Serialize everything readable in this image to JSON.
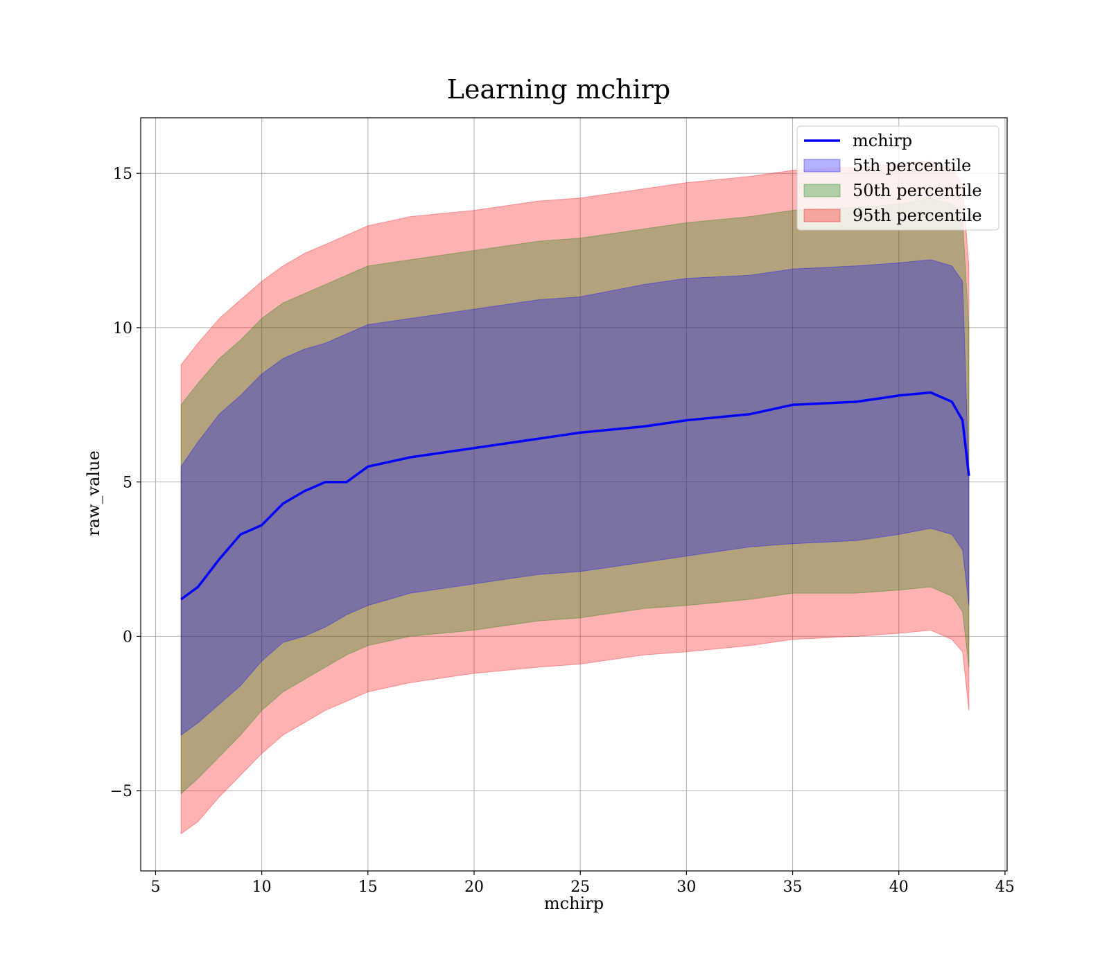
{
  "chart_data": {
    "type": "line",
    "title": "Learning mchirp",
    "xlabel": "mchirp",
    "ylabel": "raw_value",
    "xlim": [
      4.3,
      45.1
    ],
    "ylim": [
      -7.6,
      16.8
    ],
    "xticks": [
      5,
      10,
      15,
      20,
      25,
      30,
      35,
      40,
      45
    ],
    "yticks": [
      -5,
      0,
      5,
      10,
      15
    ],
    "xtick_labels": [
      "5",
      "10",
      "15",
      "20",
      "25",
      "30",
      "35",
      "40",
      "45"
    ],
    "ytick_labels": [
      "−5",
      "0",
      "5",
      "10",
      "15"
    ],
    "grid": true,
    "legend_position": "top-right",
    "x": [
      6.2,
      7,
      8,
      9,
      10,
      11,
      12,
      13,
      14,
      15,
      17,
      20,
      23,
      25,
      28,
      30,
      33,
      35,
      38,
      40,
      41.5,
      42.5,
      43,
      43.3
    ],
    "series": [
      {
        "name": "mchirp",
        "kind": "line",
        "color": "#0000ff",
        "values": [
          1.2,
          1.6,
          2.5,
          3.3,
          3.6,
          4.3,
          4.7,
          5.0,
          5.0,
          5.5,
          5.8,
          6.1,
          6.4,
          6.6,
          6.8,
          7.0,
          7.2,
          7.5,
          7.6,
          7.8,
          7.9,
          7.6,
          7.0,
          5.2
        ]
      },
      {
        "name": "5th percentile",
        "kind": "band",
        "color": "#0000ff",
        "upper": [
          5.5,
          6.3,
          7.2,
          7.8,
          8.5,
          9.0,
          9.3,
          9.5,
          9.8,
          10.1,
          10.3,
          10.6,
          10.9,
          11.0,
          11.4,
          11.6,
          11.7,
          11.9,
          12.0,
          12.1,
          12.2,
          12.0,
          11.5,
          5.2
        ],
        "lower": [
          -3.2,
          -2.8,
          -2.2,
          -1.6,
          -0.8,
          -0.2,
          0.0,
          0.3,
          0.7,
          1.0,
          1.4,
          1.7,
          2.0,
          2.1,
          2.4,
          2.6,
          2.9,
          3.0,
          3.1,
          3.3,
          3.5,
          3.3,
          2.8,
          1.0
        ]
      },
      {
        "name": "50th percentile",
        "kind": "band",
        "color": "#008000",
        "upper": [
          7.5,
          8.2,
          9.0,
          9.6,
          10.3,
          10.8,
          11.1,
          11.4,
          11.7,
          12.0,
          12.2,
          12.5,
          12.8,
          12.9,
          13.2,
          13.4,
          13.6,
          13.8,
          13.9,
          14.0,
          14.2,
          14.0,
          13.5,
          10.0
        ],
        "lower": [
          -5.1,
          -4.6,
          -3.9,
          -3.2,
          -2.4,
          -1.8,
          -1.4,
          -1.0,
          -0.6,
          -0.3,
          0.0,
          0.2,
          0.5,
          0.6,
          0.9,
          1.0,
          1.2,
          1.4,
          1.4,
          1.5,
          1.6,
          1.3,
          0.8,
          -1.0
        ]
      },
      {
        "name": "95th percentile",
        "kind": "band",
        "color": "#ff0000",
        "upper": [
          8.8,
          9.5,
          10.3,
          10.9,
          11.5,
          12.0,
          12.4,
          12.7,
          13.0,
          13.3,
          13.6,
          13.8,
          14.1,
          14.2,
          14.5,
          14.7,
          14.9,
          15.1,
          15.2,
          15.3,
          15.4,
          15.2,
          14.6,
          12.0
        ],
        "lower": [
          -6.4,
          -6.0,
          -5.2,
          -4.5,
          -3.8,
          -3.2,
          -2.8,
          -2.4,
          -2.1,
          -1.8,
          -1.5,
          -1.2,
          -1.0,
          -0.9,
          -0.6,
          -0.5,
          -0.3,
          -0.1,
          0.0,
          0.1,
          0.2,
          -0.1,
          -0.5,
          -2.4
        ]
      }
    ]
  }
}
